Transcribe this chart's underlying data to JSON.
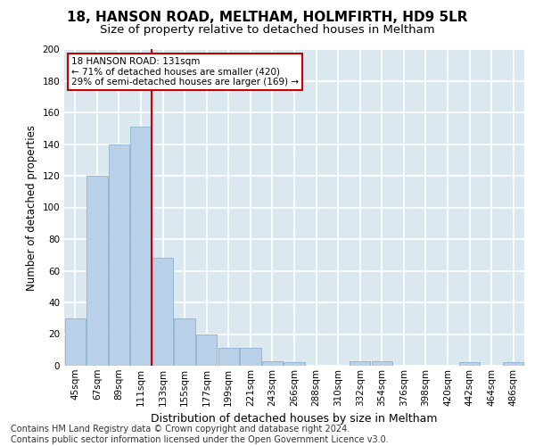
{
  "title1": "18, HANSON ROAD, MELTHAM, HOLMFIRTH, HD9 5LR",
  "title2": "Size of property relative to detached houses in Meltham",
  "xlabel": "Distribution of detached houses by size in Meltham",
  "ylabel": "Number of detached properties",
  "footer1": "Contains HM Land Registry data © Crown copyright and database right 2024.",
  "footer2": "Contains public sector information licensed under the Open Government Licence v3.0.",
  "annotation_line1": "18 HANSON ROAD: 131sqm",
  "annotation_line2": "← 71% of detached houses are smaller (420)",
  "annotation_line3": "29% of semi-detached houses are larger (169) →",
  "bar_color": "#b8d0e8",
  "bar_edge_color": "#7aaac8",
  "vline_color": "#cc0000",
  "annotation_box_edgecolor": "#cc0000",
  "bins": [
    "45sqm",
    "67sqm",
    "89sqm",
    "111sqm",
    "133sqm",
    "155sqm",
    "177sqm",
    "199sqm",
    "221sqm",
    "243sqm",
    "266sqm",
    "288sqm",
    "310sqm",
    "332sqm",
    "354sqm",
    "376sqm",
    "398sqm",
    "420sqm",
    "442sqm",
    "464sqm",
    "486sqm"
  ],
  "values": [
    30,
    120,
    140,
    151,
    68,
    30,
    20,
    11,
    11,
    3,
    2,
    0,
    0,
    3,
    3,
    0,
    0,
    0,
    2,
    0,
    2
  ],
  "ylim": [
    0,
    200
  ],
  "yticks": [
    0,
    20,
    40,
    60,
    80,
    100,
    120,
    140,
    160,
    180,
    200
  ],
  "bg_color": "#dce8f0",
  "grid_color": "#ffffff",
  "title1_fontsize": 11,
  "title2_fontsize": 9.5,
  "xlabel_fontsize": 9,
  "ylabel_fontsize": 8.5,
  "tick_fontsize": 7.5,
  "annotation_fontsize": 7.5,
  "footer_fontsize": 7
}
